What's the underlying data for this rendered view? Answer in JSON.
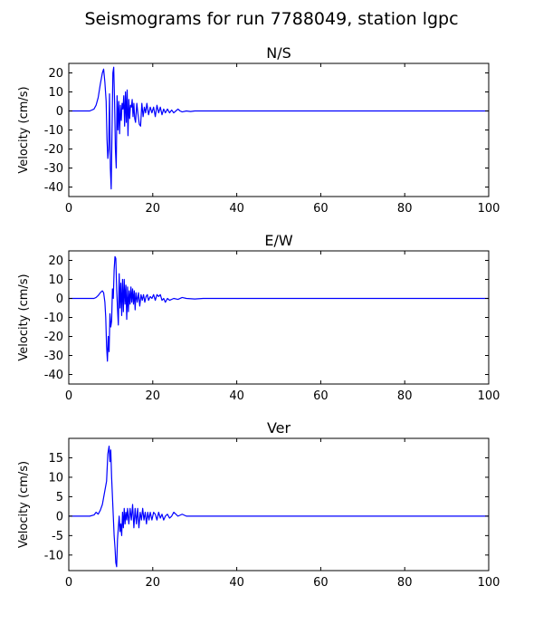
{
  "title": "Seismograms for run 7788049, station lgpc",
  "chart_data": [
    {
      "type": "line",
      "title": "N/S",
      "xlabel": "",
      "ylabel": "Velocity (cm/s)",
      "xlim": [
        0,
        100
      ],
      "ylim": [
        -45,
        25
      ],
      "xticks": [
        0,
        20,
        40,
        60,
        80,
        100
      ],
      "yticks": [
        -40,
        -30,
        -20,
        -10,
        0,
        10,
        20
      ],
      "color": "#0000ff",
      "x": [
        0,
        5,
        6,
        6.5,
        7,
        7.5,
        8,
        8.3,
        8.6,
        8.9,
        9.1,
        9.3,
        9.5,
        9.7,
        9.9,
        10.1,
        10.3,
        10.5,
        10.7,
        10.9,
        11.1,
        11.3,
        11.5,
        11.7,
        11.9,
        12.1,
        12.3,
        12.5,
        12.7,
        12.9,
        13.1,
        13.3,
        13.5,
        13.7,
        13.9,
        14.1,
        14.3,
        14.5,
        14.7,
        14.9,
        15.1,
        15.3,
        15.5,
        15.7,
        15.9,
        16.2,
        16.5,
        16.8,
        17.1,
        17.4,
        17.7,
        18,
        18.3,
        18.6,
        19,
        19.4,
        19.8,
        20.2,
        20.6,
        21,
        21.4,
        21.8,
        22.2,
        22.6,
        23,
        23.5,
        24,
        24.5,
        25,
        25.5,
        26,
        26.5,
        27,
        28,
        29,
        30,
        32,
        35,
        40,
        100
      ],
      "y": [
        0,
        0,
        1,
        3,
        7,
        14,
        20,
        22,
        15,
        5,
        -15,
        -25,
        -20,
        9,
        -30,
        -41,
        -10,
        20,
        23,
        5,
        -20,
        -30,
        8,
        -10,
        5,
        -12,
        3,
        -5,
        4,
        1,
        8,
        -8,
        10,
        -6,
        11,
        -13,
        6,
        -4,
        3,
        2,
        6,
        -3,
        4,
        -4,
        -6,
        4,
        -2,
        -7,
        -8,
        4,
        -3,
        2,
        -1,
        4,
        -2,
        2,
        -1,
        2,
        -3,
        3,
        -1,
        2,
        -2,
        1,
        -1,
        1,
        -1,
        0.5,
        -1,
        0,
        1,
        0,
        -0.5,
        0,
        -0.3,
        0,
        0,
        0,
        0,
        0
      ]
    },
    {
      "type": "line",
      "title": "E/W",
      "xlabel": "",
      "ylabel": "Velocity (cm/s)",
      "xlim": [
        0,
        100
      ],
      "ylim": [
        -45,
        25
      ],
      "xticks": [
        0,
        20,
        40,
        60,
        80,
        100
      ],
      "yticks": [
        -40,
        -30,
        -20,
        -10,
        0,
        10,
        20
      ],
      "color": "#0000ff",
      "x": [
        0,
        6,
        6.5,
        7,
        7.5,
        8,
        8.3,
        8.6,
        8.8,
        9,
        9.2,
        9.4,
        9.6,
        9.8,
        10,
        10.2,
        10.4,
        10.6,
        10.8,
        11,
        11.2,
        11.4,
        11.6,
        11.8,
        12,
        12.2,
        12.4,
        12.6,
        12.8,
        13,
        13.2,
        13.4,
        13.6,
        13.8,
        14,
        14.2,
        14.4,
        14.6,
        14.8,
        15,
        15.2,
        15.4,
        15.6,
        15.8,
        16,
        16.3,
        16.6,
        16.9,
        17.2,
        17.5,
        17.8,
        18.1,
        18.4,
        18.7,
        19,
        19.4,
        19.8,
        20.2,
        20.6,
        21,
        21.4,
        21.8,
        22.2,
        22.6,
        23,
        23.5,
        24,
        25,
        26,
        27,
        28,
        30,
        32,
        35,
        40,
        100
      ],
      "y": [
        0,
        0,
        0.5,
        1.5,
        3,
        4,
        3,
        -2,
        -10,
        -25,
        -33,
        -20,
        -28,
        -8,
        -15,
        -12,
        5,
        0,
        15,
        22,
        21,
        5,
        -5,
        -14,
        13,
        -5,
        8,
        -9,
        10,
        -7,
        10,
        -3,
        7,
        -11,
        6,
        -7,
        4,
        -3,
        6,
        -2,
        5,
        -3,
        4,
        -6,
        3,
        -2,
        3,
        -4,
        2,
        -1,
        2,
        -2,
        1,
        2,
        -1,
        1,
        0,
        2,
        -1,
        2,
        1,
        2,
        -1,
        0,
        -2,
        0,
        -1,
        0,
        -0.5,
        0.5,
        0,
        -0.3,
        0,
        0,
        0,
        0
      ]
    },
    {
      "type": "line",
      "title": "Ver",
      "xlabel": "",
      "ylabel": "Velocity (cm/s)",
      "xlim": [
        0,
        100
      ],
      "ylim": [
        -14,
        20
      ],
      "xticks": [
        0,
        20,
        40,
        60,
        80,
        100
      ],
      "yticks": [
        -10,
        -5,
        0,
        5,
        10,
        15
      ],
      "color": "#0000ff",
      "x": [
        0,
        5,
        6,
        6.5,
        7,
        7.5,
        8,
        8.5,
        9,
        9.3,
        9.6,
        9.8,
        10,
        10.2,
        10.4,
        10.6,
        10.8,
        11,
        11.2,
        11.4,
        11.6,
        11.8,
        12,
        12.2,
        12.4,
        12.6,
        12.8,
        13,
        13.2,
        13.4,
        13.6,
        13.8,
        14,
        14.3,
        14.6,
        14.9,
        15.2,
        15.5,
        15.8,
        16.1,
        16.4,
        16.7,
        17,
        17.3,
        17.6,
        17.9,
        18.2,
        18.5,
        18.8,
        19.1,
        19.4,
        19.8,
        20.2,
        20.6,
        21,
        21.4,
        21.8,
        22.2,
        22.6,
        23,
        23.5,
        24,
        24.5,
        25,
        25.5,
        26,
        27,
        28,
        30,
        32,
        35,
        40,
        100
      ],
      "y": [
        0,
        0,
        0.3,
        1,
        0.5,
        1.5,
        3,
        6,
        9,
        16,
        18,
        14,
        17,
        10,
        5,
        0,
        -5,
        -8,
        -12,
        -13,
        -6,
        -3,
        0,
        -4,
        -2,
        -5,
        1,
        -3,
        2,
        -2,
        1,
        -1,
        2,
        -2,
        2,
        -1,
        3,
        -3,
        2,
        -2,
        2,
        -3,
        1,
        -1,
        2,
        -1,
        1,
        -2,
        1,
        -1,
        1,
        -1,
        1,
        0.5,
        -1,
        1,
        -0.5,
        0.5,
        -1,
        0,
        0.5,
        -0.5,
        0,
        1,
        0.5,
        0,
        0.5,
        0,
        0,
        0,
        0,
        0,
        0
      ]
    }
  ]
}
